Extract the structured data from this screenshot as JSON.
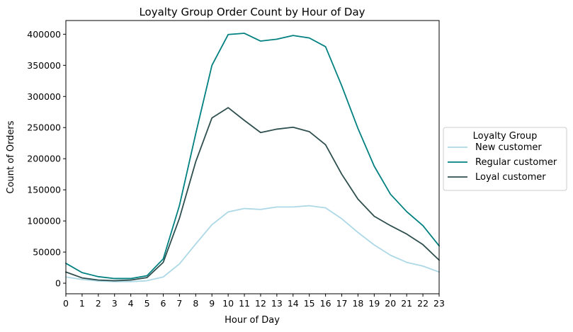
{
  "chart_data": {
    "type": "line",
    "title": "Loyalty Group Order Count by Hour of Day",
    "xlabel": "Hour of Day",
    "ylabel": "Count of Orders",
    "x": [
      0,
      1,
      2,
      3,
      4,
      5,
      6,
      7,
      8,
      9,
      10,
      11,
      12,
      13,
      14,
      15,
      16,
      17,
      18,
      19,
      20,
      21,
      22,
      23
    ],
    "x_ticks": [
      "0",
      "1",
      "2",
      "3",
      "4",
      "5",
      "6",
      "7",
      "8",
      "9",
      "10",
      "11",
      "12",
      "13",
      "14",
      "15",
      "16",
      "17",
      "18",
      "19",
      "20",
      "21",
      "22",
      "23"
    ],
    "xlim": [
      0,
      23
    ],
    "ylim": [
      -17000,
      422000
    ],
    "y_ticks": [
      0,
      50000,
      100000,
      150000,
      200000,
      250000,
      300000,
      350000,
      400000
    ],
    "y_tick_labels": [
      "0",
      "50000",
      "100000",
      "150000",
      "200000",
      "250000",
      "300000",
      "350000",
      "400000"
    ],
    "grid": false,
    "legend": {
      "title": "Loyalty Group",
      "placement": "center-right, outside plot"
    },
    "series": [
      {
        "name": "New customer",
        "color": "#add8e6",
        "values": [
          10000,
          6000,
          3500,
          2500,
          2500,
          4000,
          10000,
          31000,
          63000,
          94000,
          114500,
          120000,
          118500,
          122500,
          122500,
          124500,
          121000,
          103500,
          81500,
          61500,
          45000,
          33500,
          27500,
          18000
        ]
      },
      {
        "name": "Regular customer",
        "color": "#008080",
        "values": [
          32000,
          17000,
          10500,
          7500,
          7500,
          12000,
          39000,
          125000,
          240000,
          350000,
          399500,
          401500,
          389000,
          392000,
          398000,
          394000,
          380000,
          317000,
          248500,
          188000,
          143000,
          115000,
          92500,
          60000
        ]
      },
      {
        "name": "Loyal customer",
        "color": "#2f4f4f",
        "values": [
          18000,
          8500,
          5000,
          4000,
          5000,
          9000,
          33500,
          104500,
          195000,
          265500,
          282000,
          261500,
          242000,
          247500,
          250500,
          243500,
          222500,
          175000,
          135000,
          107500,
          92500,
          79000,
          62000,
          37000
        ]
      }
    ]
  }
}
